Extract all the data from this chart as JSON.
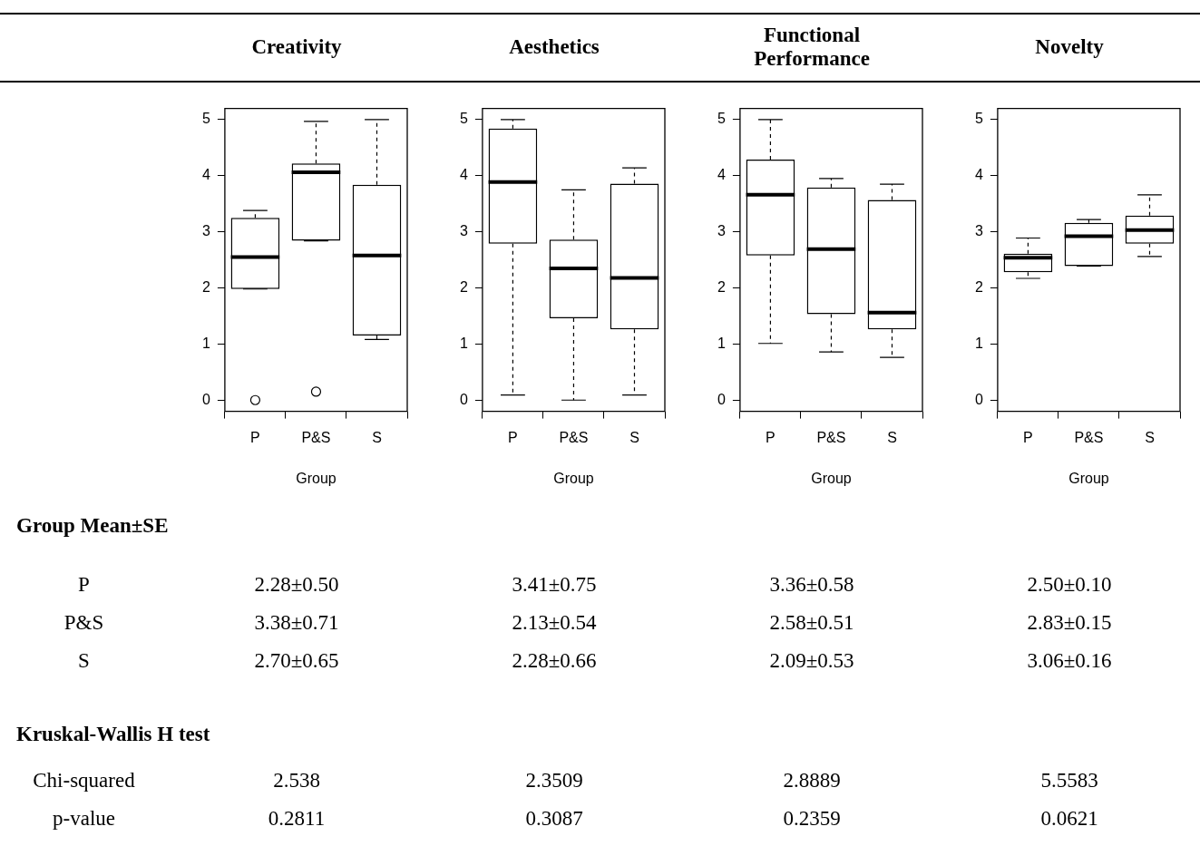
{
  "chart_data": [
    {
      "type": "box",
      "title": "Creativity",
      "xlabel": "Group",
      "categories": [
        "P",
        "P&S",
        "S"
      ],
      "ylim": [
        -0.2,
        5.2
      ],
      "yticks": [
        0,
        1,
        2,
        3,
        4,
        5
      ],
      "boxes": [
        {
          "low": 1.98,
          "q1": 1.98,
          "median": 2.55,
          "q3": 3.25,
          "high": 3.38,
          "outliers": [
            0
          ]
        },
        {
          "low": 2.84,
          "q1": 2.84,
          "median": 4.06,
          "q3": 4.22,
          "high": 4.97,
          "outliers": [
            0.15
          ]
        },
        {
          "low": 1.08,
          "q1": 1.15,
          "median": 2.58,
          "q3": 3.84,
          "high": 5.0
        }
      ]
    },
    {
      "type": "box",
      "title": "Aesthetics",
      "xlabel": "Group",
      "categories": [
        "P",
        "P&S",
        "S"
      ],
      "ylim": [
        -0.2,
        5.2
      ],
      "yticks": [
        0,
        1,
        2,
        3,
        4,
        5
      ],
      "boxes": [
        {
          "low": 0.09,
          "q1": 2.79,
          "median": 3.89,
          "q3": 4.84,
          "high": 5.0
        },
        {
          "low": 0.0,
          "q1": 1.46,
          "median": 2.35,
          "q3": 2.86,
          "high": 3.75
        },
        {
          "low": 0.09,
          "q1": 1.26,
          "median": 2.18,
          "q3": 3.86,
          "high": 4.14
        }
      ]
    },
    {
      "type": "box",
      "title": "Functional Performance",
      "xlabel": "Group",
      "categories": [
        "P",
        "P&S",
        "S"
      ],
      "ylim": [
        -0.2,
        5.2
      ],
      "yticks": [
        0,
        1,
        2,
        3,
        4,
        5
      ],
      "boxes": [
        {
          "low": 1.01,
          "q1": 2.58,
          "median": 3.66,
          "q3": 4.29,
          "high": 5.0
        },
        {
          "low": 0.86,
          "q1": 1.53,
          "median": 2.69,
          "q3": 3.79,
          "high": 3.95
        },
        {
          "low": 0.76,
          "q1": 1.26,
          "median": 1.56,
          "q3": 3.57,
          "high": 3.85
        }
      ]
    },
    {
      "type": "box",
      "title": "Novelty",
      "xlabel": "Group",
      "categories": [
        "P",
        "P&S",
        "S"
      ],
      "ylim": [
        -0.2,
        5.2
      ],
      "yticks": [
        0,
        1,
        2,
        3,
        4,
        5
      ],
      "boxes": [
        {
          "low": 2.17,
          "q1": 2.28,
          "median": 2.54,
          "q3": 2.61,
          "high": 2.89
        },
        {
          "low": 2.39,
          "q1": 2.39,
          "median": 2.92,
          "q3": 3.16,
          "high": 3.22
        },
        {
          "low": 2.56,
          "q1": 2.79,
          "median": 3.03,
          "q3": 3.29,
          "high": 3.66
        }
      ]
    },
    {
      "type": "other",
      "title": "Group Mean±SE",
      "y_categories": [
        "P",
        "P&S",
        "S"
      ],
      "cell_labels": [
        [
          "2.28±0.50",
          "3.41±0.75",
          "3.36±0.58",
          "2.50±0.10"
        ],
        [
          "3.38±0.71",
          "2.13±0.54",
          "2.58±0.51",
          "2.83±0.15"
        ],
        [
          "2.70±0.65",
          "2.28±0.66",
          "2.09±0.53",
          "3.06±0.16"
        ]
      ]
    },
    {
      "type": "other",
      "title": "Kruskal-Wallis H test",
      "y_categories": [
        "Chi-squared",
        "p-value"
      ],
      "cell_labels": [
        [
          "2.538",
          "2.3509",
          "2.8889",
          "5.5583"
        ],
        [
          "0.2811",
          "0.3087",
          "0.2359",
          "0.0621"
        ]
      ]
    }
  ]
}
